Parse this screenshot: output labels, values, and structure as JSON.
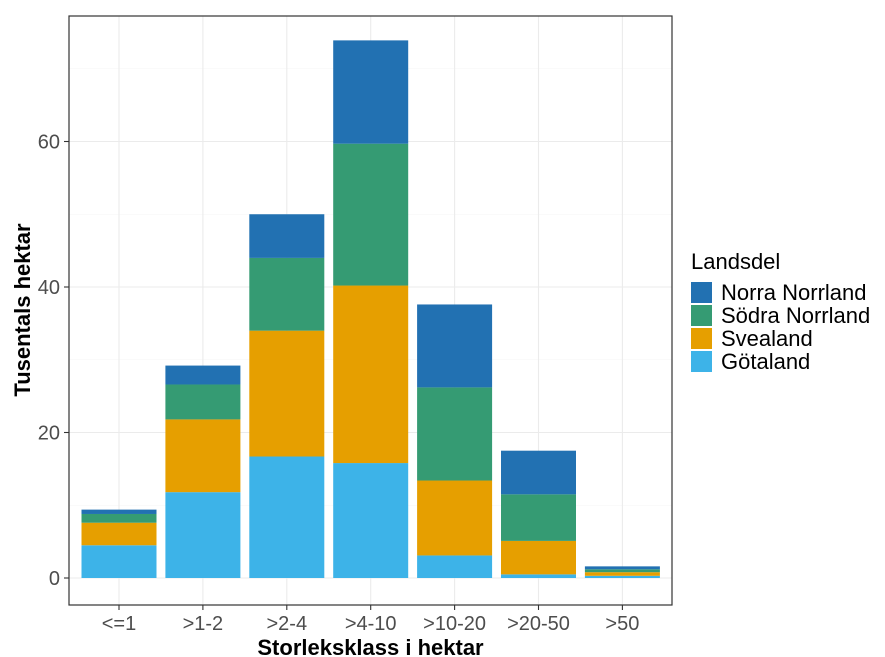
{
  "chart_data": {
    "type": "bar",
    "stacked": true,
    "categories": [
      "<=1",
      ">1-2",
      ">2-4",
      ">4-10",
      ">10-20",
      ">20-50",
      ">50"
    ],
    "series": [
      {
        "name": "Götaland",
        "color": "#3db3e8",
        "values": [
          4.5,
          11.8,
          16.7,
          15.8,
          3.1,
          0.5,
          0.3
        ]
      },
      {
        "name": "Svealand",
        "color": "#e69f00",
        "values": [
          3.1,
          10.0,
          17.3,
          24.4,
          10.3,
          4.6,
          0.5
        ]
      },
      {
        "name": "Södra Norrland",
        "color": "#359b73",
        "values": [
          1.2,
          4.8,
          10.0,
          19.5,
          12.8,
          6.4,
          0.4
        ]
      },
      {
        "name": "Norra Norrland",
        "color": "#2271b2",
        "values": [
          0.6,
          2.6,
          6.0,
          14.2,
          11.4,
          6.0,
          0.4
        ]
      }
    ],
    "xlabel": "Storleksklass i hektar",
    "ylabel": "Tusentals hektar",
    "ylim": [
      -3,
      76
    ],
    "yticks": [
      0,
      20,
      40,
      60
    ],
    "grid": true,
    "legend": {
      "title": "Landsdel",
      "placement": "right",
      "order": [
        "Norra Norrland",
        "Södra Norrland",
        "Svealand",
        "Götaland"
      ]
    }
  }
}
